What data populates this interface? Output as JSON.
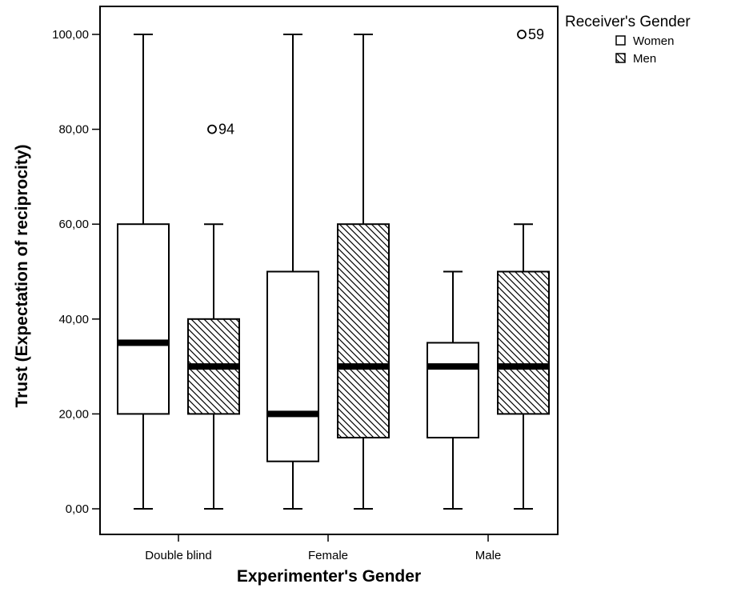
{
  "chart_data": {
    "type": "boxplot",
    "xlabel": "Experimenter's Gender",
    "ylabel": "Trust (Expectation of reciprocity)",
    "ylim": [
      0,
      110
    ],
    "yticks": [
      0,
      20,
      40,
      60,
      80,
      100
    ],
    "ytick_labels": [
      "0,00",
      "20,00",
      "40,00",
      "60,00",
      "80,00",
      "100,00"
    ],
    "categories": [
      "Double blind",
      "Female",
      "Male"
    ],
    "legend": {
      "title": "Receiver's Gender",
      "placement": "outside-top-right",
      "entries": [
        {
          "label": "Women",
          "pattern": "none"
        },
        {
          "label": "Men",
          "pattern": "hatched"
        }
      ]
    },
    "series": [
      {
        "name": "Women",
        "pattern": "none",
        "boxes": [
          {
            "min": 0,
            "q1": 20,
            "median": 35,
            "q3": 60,
            "max": 100,
            "outliers": []
          },
          {
            "min": 0,
            "q1": 10,
            "median": 20,
            "q3": 50,
            "max": 100,
            "outliers": []
          },
          {
            "min": 0,
            "q1": 15,
            "median": 30,
            "q3": 35,
            "max": 50,
            "outliers": []
          }
        ]
      },
      {
        "name": "Men",
        "pattern": "hatched",
        "boxes": [
          {
            "min": 0,
            "q1": 20,
            "median": 30,
            "q3": 40,
            "max": 60,
            "outliers": [
              {
                "value": 80,
                "label": "94"
              }
            ]
          },
          {
            "min": 0,
            "q1": 15,
            "median": 30,
            "q3": 60,
            "max": 100,
            "outliers": []
          },
          {
            "min": 0,
            "q1": 20,
            "median": 30,
            "q3": 50,
            "max": 60,
            "outliers": [
              {
                "value": 100,
                "label": "59"
              }
            ]
          }
        ]
      }
    ]
  }
}
